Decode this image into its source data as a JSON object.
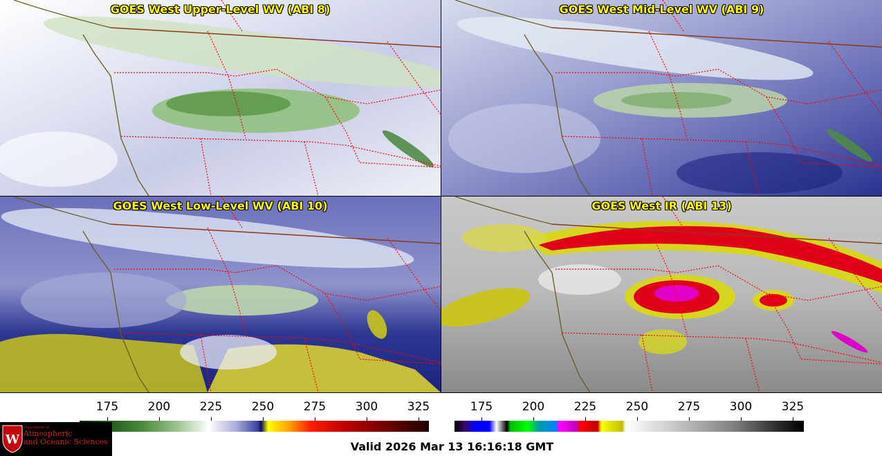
{
  "panels": [
    {
      "title": "GOES West Upper-Level WV (ABI 8)"
    },
    {
      "title": "GOES West Mid-Level WV (ABI 9)"
    },
    {
      "title": "GOES West Low-Level WV (ABI 10)"
    },
    {
      "title": "GOES West IR (ABI 13)"
    }
  ],
  "colorbars": [
    {
      "ticks": [
        "175",
        "200",
        "225",
        "250",
        "275",
        "300",
        "325"
      ]
    },
    {
      "ticks": [
        "175",
        "200",
        "225",
        "250",
        "275",
        "300",
        "325"
      ]
    }
  ],
  "logo": {
    "dept": "Department of",
    "line1": "Atmospheric",
    "line2": "and Oceanic Sciences",
    "emblem": "W"
  },
  "valid_time": "Valid 2026 Mar 13 16:16:18 GMT",
  "colors": {
    "title": "#ffff00",
    "state_border": "#ff0000",
    "country_border": "#8b3a1a",
    "coast": "#6b5a1a"
  },
  "icons": [
    "uw-crest-icon"
  ]
}
